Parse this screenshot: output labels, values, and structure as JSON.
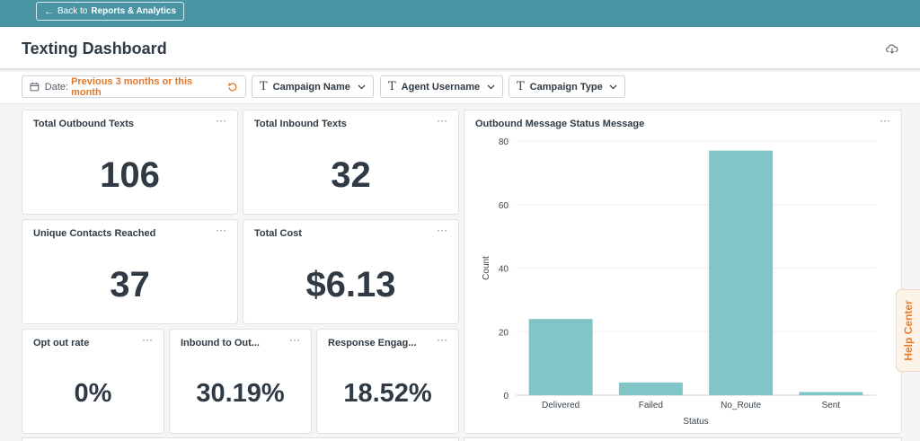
{
  "topbar": {
    "back_prefix": "Back to",
    "back_target": "Reports & Analytics",
    "back_icon": "arrow-left-icon"
  },
  "header": {
    "title": "Texting Dashboard",
    "action_icon": "cloud-download-icon"
  },
  "filters": [
    {
      "label": "Date:",
      "value": "Previous 3 months or this month",
      "icon": "calendar-icon",
      "action_icon": "reset-icon"
    },
    {
      "label": "Campaign Name",
      "icon": "text-type-icon"
    },
    {
      "label": "Agent Username",
      "icon": "text-type-icon"
    },
    {
      "label": "Campaign Type",
      "icon": "text-type-icon"
    }
  ],
  "kpis": {
    "outbound": {
      "title": "Total Outbound Texts",
      "value": "106"
    },
    "inbound": {
      "title": "Total Inbound Texts",
      "value": "32"
    },
    "contacts": {
      "title": "Unique Contacts Reached",
      "value": "37"
    },
    "cost": {
      "title": "Total Cost",
      "value": "$6.13"
    },
    "optout": {
      "title": "Opt out rate",
      "value": "0%"
    },
    "ratio": {
      "title": "Inbound to Out...",
      "value": "30.19%"
    },
    "engagement": {
      "title": "Response Engag...",
      "value": "18.52%"
    }
  },
  "menu_glyph": "···",
  "help": {
    "label": "Help Center"
  },
  "colors": {
    "accent": "#4a95a3",
    "bar": "#80c6c6",
    "orange": "#e07a2e"
  },
  "chart_data": {
    "type": "bar",
    "title": "Outbound Message Status Message",
    "xlabel": "Status",
    "ylabel": "Count",
    "categories": [
      "Delivered",
      "Failed",
      "No_Route",
      "Sent"
    ],
    "values": [
      24,
      4,
      77,
      1
    ],
    "ylim": [
      0,
      80
    ],
    "yticks": [
      0,
      20,
      40,
      60,
      80
    ],
    "grid": true
  }
}
